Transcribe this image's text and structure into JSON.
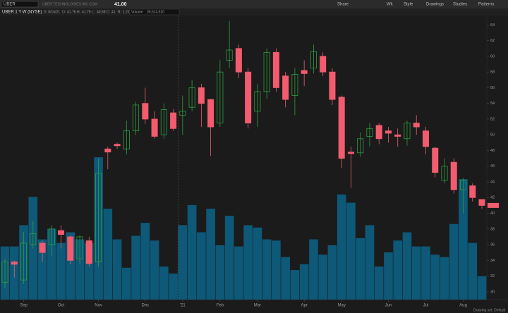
{
  "header": {
    "symbol": "UBER",
    "company": "UBER TECHNOLOGIES INC COM",
    "price": "41.00",
    "buttons": [
      "Share",
      "Wk",
      "Style",
      "Drawings",
      "Studies",
      "Patterns"
    ],
    "date_label": "D: 8/16/21",
    "open_label": "O:",
    "high_label": "H:",
    "low_label": "L:",
    "close_label": "C:",
    "range_label": "R:",
    "range": 1.21
  },
  "footer": "Drawing set: Default",
  "chart_data": {
    "type": "candlestick",
    "title": "UBER 1 Y W (NYSE)",
    "categories": [
      null,
      null,
      "Sep",
      null,
      null,
      null,
      "Oct",
      null,
      null,
      null,
      "Nov",
      null,
      null,
      null,
      null,
      "Dec",
      null,
      null,
      null,
      "'21",
      null,
      null,
      null,
      "Feb",
      null,
      null,
      null,
      "Mar",
      null,
      null,
      null,
      null,
      "Apr",
      null,
      null,
      null,
      "May",
      null,
      null,
      null,
      null,
      "Jun",
      null,
      null,
      null,
      "Jul",
      null,
      null,
      null,
      "Aug",
      null,
      null
    ],
    "open": [
      31.2,
      33.8,
      31.5,
      36,
      36.2,
      36,
      37.8,
      37,
      34.2,
      36.5,
      33.8,
      48.2,
      48.8,
      48.2,
      50.5,
      54,
      52,
      50,
      52.8,
      52.5,
      53.5,
      56,
      54.5,
      51.5,
      59.5,
      61,
      58,
      53,
      55.5,
      60.5,
      57.5,
      55,
      58.2,
      58.5,
      60,
      58,
      54.8,
      47.8,
      47.7,
      49.8,
      51.2,
      50.5,
      50,
      49.5,
      51.5,
      50.5,
      48.3,
      44.2,
      46.5,
      43,
      43.5,
      41.76
    ],
    "high": [
      34.2,
      34,
      37.6,
      39,
      36.5,
      38.5,
      38.5,
      37.2,
      37.2,
      37,
      47,
      48.5,
      49,
      51.8,
      54.2,
      56,
      53,
      54,
      53.3,
      55,
      57,
      56.5,
      54.6,
      59.5,
      64.5,
      61.5,
      58.5,
      56.5,
      61,
      61,
      58,
      58.5,
      59.5,
      61.5,
      60.5,
      58.5,
      55,
      48.5,
      50.3,
      51.5,
      51.5,
      51,
      50.8,
      51.8,
      52.5,
      51,
      48.5,
      47,
      47,
      44.5,
      43.8,
      41.79
    ],
    "low": [
      30.4,
      31.8,
      31,
      35.5,
      33.8,
      34.6,
      35.5,
      33.5,
      33.5,
      33.2,
      33.2,
      45.6,
      48.2,
      47.5,
      50,
      51.4,
      49.5,
      49.5,
      50.5,
      50,
      53,
      51,
      47.3,
      51,
      58.5,
      57.2,
      50.8,
      51,
      54.6,
      55.5,
      53.5,
      52.5,
      56.2,
      57.8,
      57.5,
      53.8,
      45.8,
      43.2,
      47.2,
      48.5,
      48.8,
      49,
      48.5,
      48.6,
      50,
      47.5,
      44.6,
      43.8,
      42.5,
      40,
      41.5,
      40.58
    ],
    "close": [
      33.8,
      33.5,
      36.2,
      37.4,
      35,
      38,
      37.3,
      34,
      37,
      33.6,
      45.1,
      47.8,
      48.6,
      50.5,
      53.8,
      52,
      49.8,
      53.2,
      50.8,
      53,
      56,
      54,
      51,
      58,
      60.8,
      58,
      51.5,
      55.5,
      60.5,
      56,
      54.5,
      57.7,
      57.8,
      60.6,
      58,
      54.5,
      47,
      47.6,
      49.5,
      50.8,
      49.5,
      50.2,
      49.8,
      51.5,
      51,
      48.5,
      45.2,
      46,
      43,
      44.2,
      42,
      41
    ],
    "up_color": "#2f9e3f",
    "down_color": "#f25c6e",
    "ylim": [
      29,
      65.2
    ],
    "yticks": [
      30,
      32,
      34,
      36,
      38,
      40,
      42,
      44,
      46,
      48,
      50,
      52,
      54,
      56,
      58,
      60,
      62,
      64
    ],
    "volume": {
      "name": "Volume",
      "color": "#0e5878",
      "ylim": [
        0,
        481000000
      ],
      "values": [
        90000000,
        90000000,
        126000000,
        174000000,
        102000000,
        120000000,
        96000000,
        114000000,
        102000000,
        96000000,
        241000000,
        154000000,
        102000000,
        54000000,
        108000000,
        130000000,
        100000000,
        56000000,
        44000000,
        126000000,
        160000000,
        114000000,
        154000000,
        92000000,
        142000000,
        90000000,
        126000000,
        122000000,
        102000000,
        100000000,
        72000000,
        50000000,
        60000000,
        102000000,
        76000000,
        92000000,
        178000000,
        164000000,
        104000000,
        126000000,
        56000000,
        80000000,
        100000000,
        114000000,
        90000000,
        90000000,
        76000000,
        72000000,
        128000000,
        204000000,
        96000000,
        39614520
      ],
      "value_labels": [
        null,
        null,
        null,
        null,
        null,
        null,
        null,
        null,
        null,
        null,
        null,
        null,
        null,
        null,
        null,
        null,
        null,
        null,
        null,
        null,
        null,
        null,
        null,
        null,
        null,
        null,
        null,
        null,
        null,
        null,
        null,
        null,
        null,
        null,
        null,
        null,
        null,
        null,
        null,
        null,
        null,
        null,
        null,
        null,
        null,
        null,
        null,
        null,
        null,
        null,
        null,
        "39,614,520"
      ]
    }
  }
}
